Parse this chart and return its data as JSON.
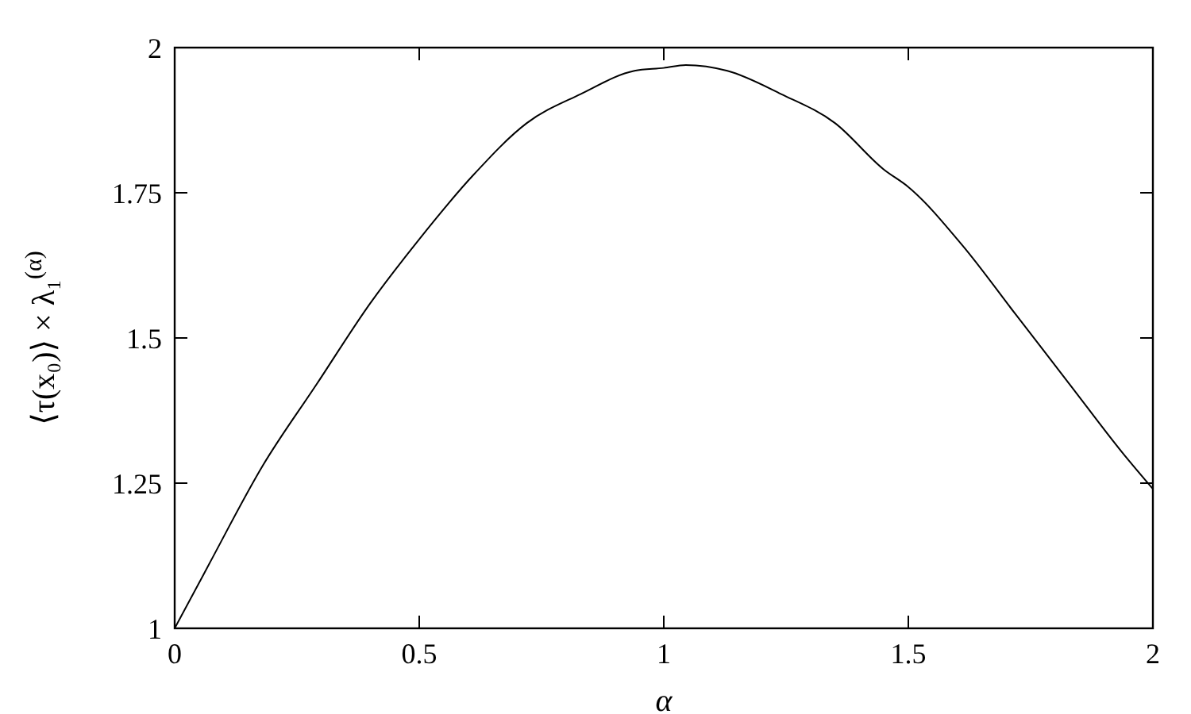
{
  "chart_data": {
    "type": "line",
    "xlabel": "α",
    "ylabel": "⟨τ(x₀)⟩ × λ₁$^{(α)}$",
    "xlim": [
      0,
      2
    ],
    "ylim": [
      1,
      2
    ],
    "xticks": [
      0,
      0.5,
      1,
      1.5,
      2
    ],
    "yticks": [
      1,
      1.25,
      1.5,
      1.75,
      2
    ],
    "grid": false,
    "marker": "none",
    "line_style": "solid",
    "series": [
      {
        "color": "#000000",
        "x": [
          0,
          0.07,
          0.18,
          0.29,
          0.4,
          0.5,
          0.61,
          0.72,
          0.83,
          0.94,
          1,
          1.045,
          1.13,
          1.24,
          1.35,
          1.45,
          1.5,
          1.61,
          1.72,
          1.83,
          1.94,
          2
        ],
        "values": [
          1,
          1.11,
          1.28,
          1.42,
          1.56,
          1.67,
          1.78,
          1.87,
          1.92,
          1.96,
          1.965,
          1.97,
          1.96,
          1.92,
          1.87,
          1.79,
          1.76,
          1.66,
          1.54,
          1.42,
          1.3,
          1.24
        ]
      }
    ]
  }
}
